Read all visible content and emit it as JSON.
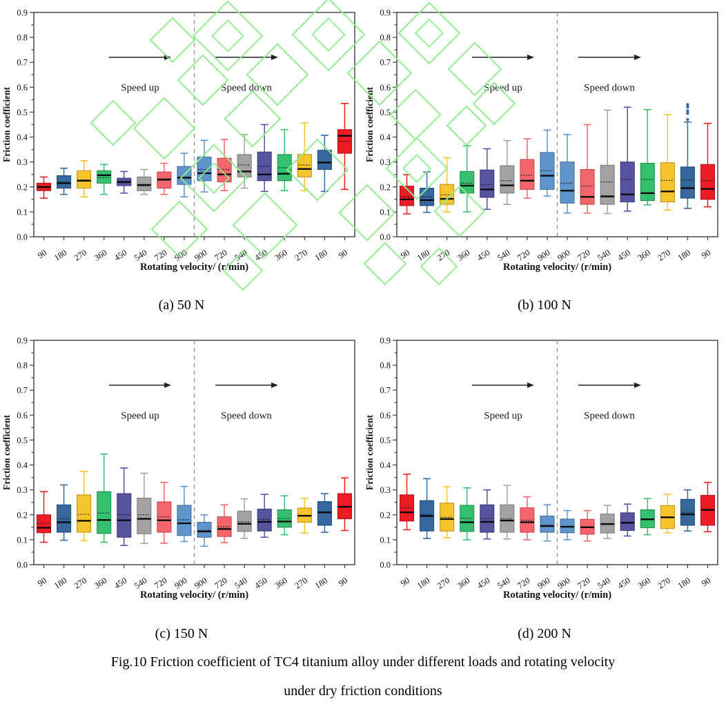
{
  "figure": {
    "caption_line1": "Fig.10 Friction coefficient of TC4 titanium alloy under different loads and rotating velocity",
    "caption_line2": "under dry friction conditions"
  },
  "axes": {
    "ylabel": "Friction coefficient",
    "xlabel": "Rotating velocity/ (r/min)",
    "ylim": [
      0.0,
      0.9
    ],
    "ytick_labels": [
      "0.0",
      "0.1",
      "0.2",
      "0.3",
      "0.4",
      "0.5",
      "0.6",
      "0.7",
      "0.8",
      "0.9"
    ],
    "yminor_step": 0.05,
    "grid": "off",
    "categories": [
      "90",
      "180",
      "270",
      "360",
      "450",
      "540",
      "720",
      "900",
      "900",
      "720",
      "540",
      "450",
      "360",
      "270",
      "180",
      "90"
    ],
    "series_colors": [
      "red",
      "blue",
      "gold",
      "green",
      "purple",
      "gray",
      "salmon",
      "lightblue",
      "lightblue",
      "salmon",
      "gray",
      "purple",
      "green",
      "gold",
      "blue",
      "red"
    ],
    "annotations": {
      "speed_up": "Speed up",
      "speed_down": "Speed down"
    }
  },
  "colors": {
    "red": {
      "fill": "#ed1c24",
      "edge": "#b3121a"
    },
    "blue": {
      "fill": "#35689f",
      "edge": "#264e79"
    },
    "gold": {
      "fill": "#f6c52e",
      "edge": "#c2951a"
    },
    "green": {
      "fill": "#35c06f",
      "edge": "#239153"
    },
    "purple": {
      "fill": "#56549f",
      "edge": "#3e3d78"
    },
    "gray": {
      "fill": "#a2a2a2",
      "edge": "#7e7e7e"
    },
    "salmon": {
      "fill": "#f4666c",
      "edge": "#c44a50"
    },
    "lightblue": {
      "fill": "#5e95cb",
      "edge": "#44709c"
    },
    "median_line": "#0a0a0a",
    "mean_line": "#0a0a0a",
    "axis": "#3c3c3c",
    "divider": "#8f8f8f",
    "watermark": "#8feb8f"
  },
  "chart_data": [
    {
      "type": "box",
      "title": "(a) 50 N",
      "load": "50 N",
      "boxes": [
        {
          "velocity": "90",
          "color": "red",
          "low": 0.155,
          "q1": 0.185,
          "median": 0.2,
          "mean": 0.197,
          "q3": 0.215,
          "high": 0.24,
          "outliers": []
        },
        {
          "velocity": "180",
          "color": "blue",
          "low": 0.17,
          "q1": 0.195,
          "median": 0.215,
          "mean": 0.218,
          "q3": 0.245,
          "high": 0.275,
          "outliers": []
        },
        {
          "velocity": "270",
          "color": "gold",
          "low": 0.16,
          "q1": 0.195,
          "median": 0.225,
          "mean": 0.228,
          "q3": 0.265,
          "high": 0.305,
          "outliers": []
        },
        {
          "velocity": "360",
          "color": "green",
          "low": 0.17,
          "q1": 0.215,
          "median": 0.247,
          "mean": 0.237,
          "q3": 0.265,
          "high": 0.29,
          "outliers": []
        },
        {
          "velocity": "450",
          "color": "purple",
          "low": 0.175,
          "q1": 0.205,
          "median": 0.22,
          "mean": 0.217,
          "q3": 0.235,
          "high": 0.262,
          "outliers": []
        },
        {
          "velocity": "540",
          "color": "gray",
          "low": 0.17,
          "q1": 0.185,
          "median": 0.208,
          "mean": 0.204,
          "q3": 0.24,
          "high": 0.27,
          "outliers": []
        },
        {
          "velocity": "720",
          "color": "salmon",
          "low": 0.17,
          "q1": 0.195,
          "median": 0.23,
          "mean": 0.226,
          "q3": 0.26,
          "high": 0.295,
          "outliers": []
        },
        {
          "velocity": "900",
          "color": "lightblue",
          "low": 0.16,
          "q1": 0.21,
          "median": 0.237,
          "mean": 0.24,
          "q3": 0.282,
          "high": 0.335,
          "outliers": []
        },
        {
          "velocity": "900",
          "color": "lightblue",
          "low": 0.18,
          "q1": 0.225,
          "median": 0.255,
          "mean": 0.27,
          "q3": 0.32,
          "high": 0.387,
          "outliers": []
        },
        {
          "velocity": "720",
          "color": "salmon",
          "low": 0.185,
          "q1": 0.22,
          "median": 0.25,
          "mean": 0.27,
          "q3": 0.315,
          "high": 0.39,
          "outliers": []
        },
        {
          "velocity": "540",
          "color": "gray",
          "low": 0.195,
          "q1": 0.24,
          "median": 0.262,
          "mean": 0.288,
          "q3": 0.33,
          "high": 0.41,
          "outliers": []
        },
        {
          "velocity": "450",
          "color": "purple",
          "low": 0.182,
          "q1": 0.225,
          "median": 0.25,
          "mean": 0.283,
          "q3": 0.34,
          "high": 0.45,
          "outliers": []
        },
        {
          "velocity": "360",
          "color": "green",
          "low": 0.185,
          "q1": 0.225,
          "median": 0.253,
          "mean": 0.277,
          "q3": 0.33,
          "high": 0.43,
          "outliers": []
        },
        {
          "velocity": "270",
          "color": "gold",
          "low": 0.185,
          "q1": 0.24,
          "median": 0.272,
          "mean": 0.288,
          "q3": 0.33,
          "high": 0.457,
          "outliers": []
        },
        {
          "velocity": "180",
          "color": "blue",
          "low": 0.182,
          "q1": 0.27,
          "median": 0.298,
          "mean": 0.3,
          "q3": 0.347,
          "high": 0.407,
          "outliers": []
        },
        {
          "velocity": "90",
          "color": "red",
          "low": 0.19,
          "q1": 0.335,
          "median": 0.405,
          "mean": 0.382,
          "q3": 0.43,
          "high": 0.535,
          "outliers": []
        }
      ]
    },
    {
      "type": "box",
      "title": "(b) 100 N",
      "load": "100 N",
      "boxes": [
        {
          "velocity": "90",
          "color": "red",
          "low": 0.092,
          "q1": 0.125,
          "median": 0.15,
          "mean": 0.16,
          "q3": 0.203,
          "high": 0.249,
          "outliers": []
        },
        {
          "velocity": "180",
          "color": "blue",
          "low": 0.098,
          "q1": 0.125,
          "median": 0.147,
          "mean": 0.16,
          "q3": 0.195,
          "high": 0.26,
          "outliers": []
        },
        {
          "velocity": "270",
          "color": "gold",
          "low": 0.1,
          "q1": 0.13,
          "median": 0.152,
          "mean": 0.168,
          "q3": 0.21,
          "high": 0.317,
          "outliers": []
        },
        {
          "velocity": "360",
          "color": "green",
          "low": 0.1,
          "q1": 0.175,
          "median": 0.205,
          "mean": 0.215,
          "q3": 0.262,
          "high": 0.365,
          "outliers": []
        },
        {
          "velocity": "450",
          "color": "purple",
          "low": 0.11,
          "q1": 0.158,
          "median": 0.19,
          "mean": 0.21,
          "q3": 0.268,
          "high": 0.353,
          "outliers": []
        },
        {
          "velocity": "540",
          "color": "gray",
          "low": 0.13,
          "q1": 0.175,
          "median": 0.206,
          "mean": 0.225,
          "q3": 0.285,
          "high": 0.386,
          "outliers": []
        },
        {
          "velocity": "720",
          "color": "salmon",
          "low": 0.155,
          "q1": 0.19,
          "median": 0.225,
          "mean": 0.247,
          "q3": 0.31,
          "high": 0.393,
          "outliers": []
        },
        {
          "velocity": "900",
          "color": "lightblue",
          "low": 0.163,
          "q1": 0.19,
          "median": 0.245,
          "mean": 0.265,
          "q3": 0.338,
          "high": 0.428,
          "outliers": []
        },
        {
          "velocity": "900",
          "color": "lightblue",
          "low": 0.095,
          "q1": 0.135,
          "median": 0.185,
          "mean": 0.215,
          "q3": 0.3,
          "high": 0.41,
          "outliers": []
        },
        {
          "velocity": "720",
          "color": "salmon",
          "low": 0.095,
          "q1": 0.13,
          "median": 0.16,
          "mean": 0.203,
          "q3": 0.27,
          "high": 0.45,
          "outliers": []
        },
        {
          "velocity": "540",
          "color": "gray",
          "low": 0.093,
          "q1": 0.13,
          "median": 0.162,
          "mean": 0.22,
          "q3": 0.287,
          "high": 0.508,
          "outliers": []
        },
        {
          "velocity": "450",
          "color": "purple",
          "low": 0.103,
          "q1": 0.14,
          "median": 0.17,
          "mean": 0.23,
          "q3": 0.3,
          "high": 0.52,
          "outliers": []
        },
        {
          "velocity": "360",
          "color": "green",
          "low": 0.128,
          "q1": 0.145,
          "median": 0.175,
          "mean": 0.23,
          "q3": 0.295,
          "high": 0.51,
          "outliers": []
        },
        {
          "velocity": "270",
          "color": "gold",
          "low": 0.107,
          "q1": 0.14,
          "median": 0.182,
          "mean": 0.226,
          "q3": 0.297,
          "high": 0.49,
          "outliers": []
        },
        {
          "velocity": "180",
          "color": "blue",
          "low": 0.114,
          "q1": 0.155,
          "median": 0.195,
          "mean": 0.228,
          "q3": 0.28,
          "high": 0.46,
          "outliers": [
            0.47,
            0.495,
            0.505,
            0.52,
            0.53
          ]
        },
        {
          "velocity": "90",
          "color": "red",
          "low": 0.12,
          "q1": 0.15,
          "median": 0.192,
          "mean": 0.225,
          "q3": 0.29,
          "high": 0.455,
          "outliers": []
        }
      ]
    },
    {
      "type": "box",
      "title": "(c) 150 N",
      "load": "150 N",
      "boxes": [
        {
          "velocity": "90",
          "color": "red",
          "low": 0.09,
          "q1": 0.128,
          "median": 0.148,
          "mean": 0.165,
          "q3": 0.2,
          "high": 0.293,
          "outliers": []
        },
        {
          "velocity": "180",
          "color": "blue",
          "low": 0.098,
          "q1": 0.13,
          "median": 0.17,
          "mean": 0.184,
          "q3": 0.24,
          "high": 0.32,
          "outliers": []
        },
        {
          "velocity": "270",
          "color": "gold",
          "low": 0.096,
          "q1": 0.13,
          "median": 0.176,
          "mean": 0.202,
          "q3": 0.28,
          "high": 0.374,
          "outliers": []
        },
        {
          "velocity": "360",
          "color": "green",
          "low": 0.09,
          "q1": 0.125,
          "median": 0.179,
          "mean": 0.207,
          "q3": 0.293,
          "high": 0.444,
          "outliers": []
        },
        {
          "velocity": "450",
          "color": "purple",
          "low": 0.077,
          "q1": 0.11,
          "median": 0.178,
          "mean": 0.2,
          "q3": 0.285,
          "high": 0.388,
          "outliers": []
        },
        {
          "velocity": "540",
          "color": "gray",
          "low": 0.085,
          "q1": 0.124,
          "median": 0.184,
          "mean": 0.2,
          "q3": 0.267,
          "high": 0.367,
          "outliers": []
        },
        {
          "velocity": "720",
          "color": "salmon",
          "low": 0.086,
          "q1": 0.13,
          "median": 0.178,
          "mean": 0.192,
          "q3": 0.252,
          "high": 0.33,
          "outliers": []
        },
        {
          "velocity": "900",
          "color": "lightblue",
          "low": 0.093,
          "q1": 0.117,
          "median": 0.166,
          "mean": 0.18,
          "q3": 0.238,
          "high": 0.314,
          "outliers": []
        },
        {
          "velocity": "900",
          "color": "lightblue",
          "low": 0.074,
          "q1": 0.11,
          "median": 0.133,
          "mean": 0.138,
          "q3": 0.17,
          "high": 0.2,
          "outliers": []
        },
        {
          "velocity": "720",
          "color": "salmon",
          "low": 0.088,
          "q1": 0.113,
          "median": 0.143,
          "mean": 0.152,
          "q3": 0.192,
          "high": 0.24,
          "outliers": []
        },
        {
          "velocity": "540",
          "color": "gray",
          "low": 0.105,
          "q1": 0.133,
          "median": 0.164,
          "mean": 0.172,
          "q3": 0.215,
          "high": 0.264,
          "outliers": []
        },
        {
          "velocity": "450",
          "color": "purple",
          "low": 0.11,
          "q1": 0.135,
          "median": 0.172,
          "mean": 0.182,
          "q3": 0.223,
          "high": 0.282,
          "outliers": []
        },
        {
          "velocity": "360",
          "color": "green",
          "low": 0.12,
          "q1": 0.15,
          "median": 0.173,
          "mean": 0.185,
          "q3": 0.22,
          "high": 0.276,
          "outliers": []
        },
        {
          "velocity": "270",
          "color": "gold",
          "low": 0.127,
          "q1": 0.17,
          "median": 0.196,
          "mean": 0.198,
          "q3": 0.227,
          "high": 0.266,
          "outliers": []
        },
        {
          "velocity": "180",
          "color": "blue",
          "low": 0.13,
          "q1": 0.158,
          "median": 0.21,
          "mean": 0.212,
          "q3": 0.253,
          "high": 0.285,
          "outliers": []
        },
        {
          "velocity": "90",
          "color": "red",
          "low": 0.137,
          "q1": 0.184,
          "median": 0.232,
          "mean": 0.234,
          "q3": 0.285,
          "high": 0.348,
          "outliers": []
        }
      ]
    },
    {
      "type": "box",
      "title": "(d) 200 N",
      "load": "200 N",
      "boxes": [
        {
          "velocity": "90",
          "color": "red",
          "low": 0.14,
          "q1": 0.175,
          "median": 0.21,
          "mean": 0.228,
          "q3": 0.28,
          "high": 0.363,
          "outliers": []
        },
        {
          "velocity": "180",
          "color": "blue",
          "low": 0.105,
          "q1": 0.135,
          "median": 0.195,
          "mean": 0.2,
          "q3": 0.257,
          "high": 0.345,
          "outliers": []
        },
        {
          "velocity": "270",
          "color": "gold",
          "low": 0.108,
          "q1": 0.135,
          "median": 0.183,
          "mean": 0.19,
          "q3": 0.247,
          "high": 0.313,
          "outliers": []
        },
        {
          "velocity": "360",
          "color": "green",
          "low": 0.1,
          "q1": 0.133,
          "median": 0.17,
          "mean": 0.186,
          "q3": 0.238,
          "high": 0.308,
          "outliers": []
        },
        {
          "velocity": "450",
          "color": "purple",
          "low": 0.103,
          "q1": 0.13,
          "median": 0.172,
          "mean": 0.185,
          "q3": 0.24,
          "high": 0.3,
          "outliers": []
        },
        {
          "velocity": "540",
          "color": "gray",
          "low": 0.103,
          "q1": 0.13,
          "median": 0.177,
          "mean": 0.184,
          "q3": 0.24,
          "high": 0.318,
          "outliers": []
        },
        {
          "velocity": "720",
          "color": "salmon",
          "low": 0.1,
          "q1": 0.13,
          "median": 0.17,
          "mean": 0.178,
          "q3": 0.228,
          "high": 0.272,
          "outliers": []
        },
        {
          "velocity": "900",
          "color": "lightblue",
          "low": 0.095,
          "q1": 0.13,
          "median": 0.155,
          "mean": 0.158,
          "q3": 0.195,
          "high": 0.24,
          "outliers": []
        },
        {
          "velocity": "900",
          "color": "lightblue",
          "low": 0.1,
          "q1": 0.128,
          "median": 0.152,
          "mean": 0.153,
          "q3": 0.183,
          "high": 0.217,
          "outliers": []
        },
        {
          "velocity": "720",
          "color": "salmon",
          "low": 0.095,
          "q1": 0.122,
          "median": 0.15,
          "mean": 0.151,
          "q3": 0.182,
          "high": 0.217,
          "outliers": []
        },
        {
          "velocity": "540",
          "color": "gray",
          "low": 0.105,
          "q1": 0.127,
          "median": 0.163,
          "mean": 0.163,
          "q3": 0.203,
          "high": 0.238,
          "outliers": []
        },
        {
          "velocity": "450",
          "color": "purple",
          "low": 0.115,
          "q1": 0.137,
          "median": 0.168,
          "mean": 0.17,
          "q3": 0.208,
          "high": 0.243,
          "outliers": []
        },
        {
          "velocity": "360",
          "color": "green",
          "low": 0.12,
          "q1": 0.148,
          "median": 0.182,
          "mean": 0.183,
          "q3": 0.22,
          "high": 0.265,
          "outliers": []
        },
        {
          "velocity": "270",
          "color": "gold",
          "low": 0.128,
          "q1": 0.145,
          "median": 0.19,
          "mean": 0.192,
          "q3": 0.237,
          "high": 0.282,
          "outliers": []
        },
        {
          "velocity": "180",
          "color": "blue",
          "low": 0.135,
          "q1": 0.158,
          "median": 0.202,
          "mean": 0.21,
          "q3": 0.262,
          "high": 0.3,
          "outliers": []
        },
        {
          "velocity": "90",
          "color": "red",
          "low": 0.132,
          "q1": 0.158,
          "median": 0.22,
          "mean": 0.218,
          "q3": 0.278,
          "high": 0.33,
          "outliers": []
        }
      ]
    }
  ]
}
